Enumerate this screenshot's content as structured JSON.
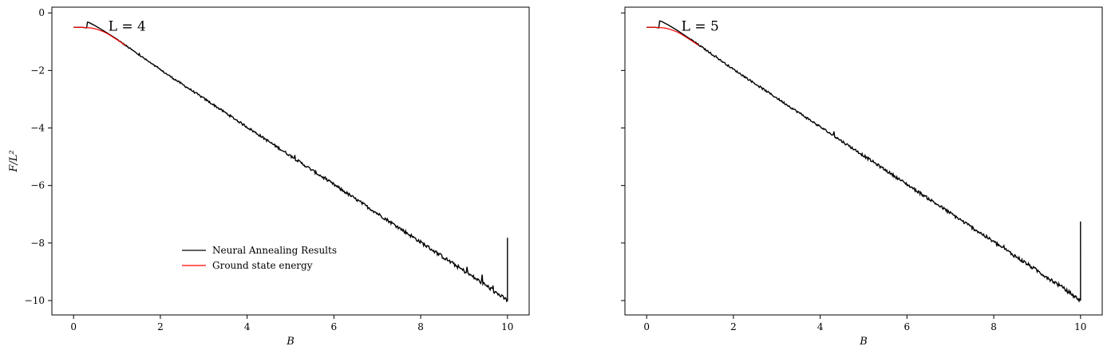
{
  "chart_data": [
    {
      "type": "line",
      "panel_label": "L = 4",
      "xlabel": "B",
      "ylabel": "F/L²",
      "xlim": [
        -0.5,
        10.5
      ],
      "ylim": [
        -10.5,
        0.2
      ],
      "xticks": [
        0,
        2,
        4,
        6,
        8,
        10
      ],
      "yticks": [
        0,
        -2,
        -4,
        -6,
        -8,
        -10
      ],
      "xtick_labels": [
        "0",
        "2",
        "4",
        "6",
        "8",
        "10"
      ],
      "ytick_labels": [
        "0",
        "−2",
        "−4",
        "−6",
        "−8",
        "−10"
      ],
      "grid": false,
      "legend": "lower-center",
      "series": [
        {
          "name": "Neural Annealing Results",
          "color": "#000000",
          "x": [
            0.0,
            0.1,
            0.2,
            0.3,
            0.32,
            0.35,
            0.5,
            0.7,
            1.0,
            1.5,
            2.0,
            3.0,
            4.0,
            5.0,
            6.0,
            7.0,
            8.0,
            9.0,
            9.5,
            9.9,
            10.0,
            10.0
          ],
          "y": [
            -0.5,
            -0.5,
            -0.5,
            -0.52,
            -0.32,
            -0.33,
            -0.45,
            -0.63,
            -0.92,
            -1.45,
            -1.98,
            -2.97,
            -3.97,
            -4.97,
            -5.97,
            -6.97,
            -7.97,
            -8.97,
            -9.47,
            -9.9,
            -10.0,
            -7.82
          ]
        },
        {
          "name": "Ground state energy",
          "color": "#ff0000",
          "x": [
            0.0,
            0.2,
            0.4,
            0.5,
            0.6,
            0.7,
            0.8,
            1.0,
            1.2
          ],
          "y": [
            -0.5,
            -0.5,
            -0.52,
            -0.55,
            -0.6,
            -0.66,
            -0.74,
            -0.93,
            -1.13
          ]
        }
      ]
    },
    {
      "type": "line",
      "panel_label": "L = 5",
      "xlabel": "B",
      "ylabel": "",
      "xlim": [
        -0.5,
        10.5
      ],
      "ylim": [
        -10.5,
        0.2
      ],
      "xticks": [
        0,
        2,
        4,
        6,
        8,
        10
      ],
      "yticks": [
        0,
        -2,
        -4,
        -6,
        -8,
        -10
      ],
      "xtick_labels": [
        "0",
        "2",
        "4",
        "6",
        "8",
        "10"
      ],
      "ytick_labels": [],
      "grid": false,
      "legend": "none",
      "series": [
        {
          "name": "Neural Annealing Results",
          "color": "#000000",
          "x": [
            0.0,
            0.1,
            0.2,
            0.28,
            0.3,
            0.35,
            0.5,
            0.7,
            1.0,
            1.5,
            2.0,
            3.0,
            4.0,
            5.0,
            6.0,
            7.0,
            8.0,
            9.0,
            9.5,
            9.9,
            10.0,
            10.0
          ],
          "y": [
            -0.5,
            -0.5,
            -0.5,
            -0.52,
            -0.28,
            -0.3,
            -0.42,
            -0.6,
            -0.9,
            -1.43,
            -1.96,
            -2.96,
            -3.96,
            -4.96,
            -5.96,
            -6.96,
            -7.96,
            -8.96,
            -9.46,
            -9.9,
            -10.0,
            -7.25
          ]
        },
        {
          "name": "Ground state energy",
          "color": "#ff0000",
          "x": [
            0.0,
            0.2,
            0.4,
            0.5,
            0.6,
            0.7,
            0.8,
            1.0,
            1.2
          ],
          "y": [
            -0.5,
            -0.5,
            -0.52,
            -0.55,
            -0.6,
            -0.66,
            -0.74,
            -0.93,
            -1.13
          ]
        }
      ]
    }
  ]
}
